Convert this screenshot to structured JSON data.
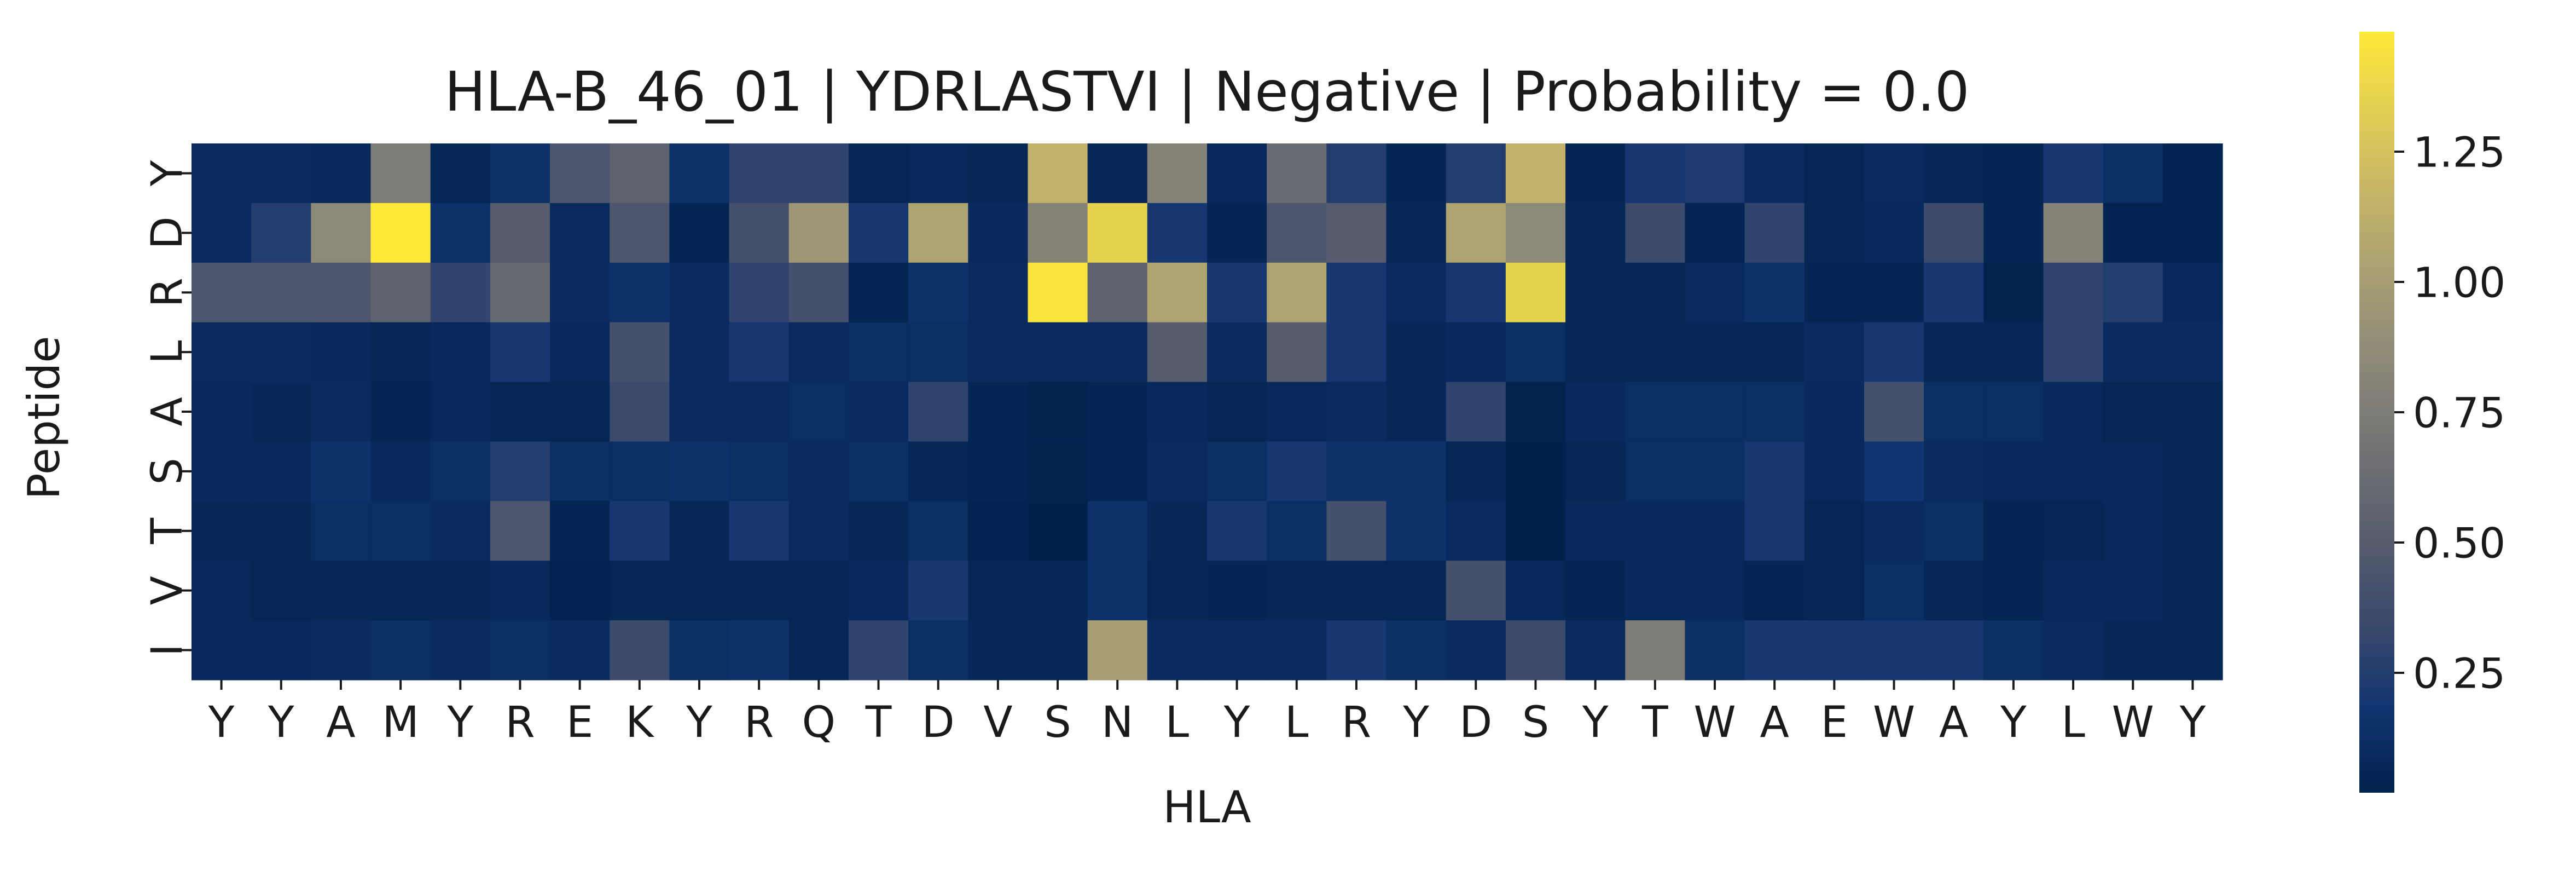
{
  "chart_data": {
    "type": "heatmap",
    "title": "HLA-B_46_01 | YDRLASTVI | Negative | Probability = 0.0",
    "xlabel": "HLA",
    "ylabel": "Peptide",
    "x_categories": [
      "Y",
      "Y",
      "A",
      "M",
      "Y",
      "R",
      "E",
      "K",
      "Y",
      "R",
      "Q",
      "T",
      "D",
      "V",
      "S",
      "N",
      "L",
      "Y",
      "L",
      "R",
      "Y",
      "D",
      "S",
      "Y",
      "T",
      "W",
      "A",
      "E",
      "W",
      "A",
      "Y",
      "L",
      "W",
      "Y"
    ],
    "y_categories": [
      "Y",
      "D",
      "R",
      "L",
      "A",
      "S",
      "T",
      "V",
      "I"
    ],
    "values": [
      [
        0.1,
        0.1,
        0.08,
        0.75,
        0.07,
        0.15,
        0.45,
        0.55,
        0.15,
        0.3,
        0.3,
        0.06,
        0.08,
        0.07,
        1.15,
        0.06,
        0.8,
        0.08,
        0.62,
        0.25,
        0.05,
        0.25,
        1.15,
        0.05,
        0.2,
        0.22,
        0.1,
        0.06,
        0.1,
        0.07,
        0.05,
        0.2,
        0.12,
        0.04
      ],
      [
        0.1,
        0.25,
        0.85,
        1.48,
        0.15,
        0.5,
        0.1,
        0.45,
        0.05,
        0.4,
        0.95,
        0.2,
        1.05,
        0.08,
        0.8,
        1.35,
        0.2,
        0.05,
        0.45,
        0.5,
        0.06,
        1.05,
        0.85,
        0.06,
        0.35,
        0.05,
        0.3,
        0.06,
        0.08,
        0.35,
        0.05,
        0.8,
        0.04,
        0.04
      ],
      [
        0.45,
        0.45,
        0.45,
        0.55,
        0.3,
        0.6,
        0.1,
        0.15,
        0.1,
        0.3,
        0.4,
        0.05,
        0.15,
        0.1,
        1.45,
        0.55,
        1.05,
        0.2,
        1.05,
        0.2,
        0.1,
        0.2,
        1.35,
        0.06,
        0.06,
        0.1,
        0.15,
        0.05,
        0.05,
        0.2,
        0.03,
        0.3,
        0.25,
        0.08
      ],
      [
        0.1,
        0.1,
        0.08,
        0.06,
        0.08,
        0.2,
        0.08,
        0.4,
        0.1,
        0.2,
        0.1,
        0.12,
        0.12,
        0.1,
        0.1,
        0.1,
        0.5,
        0.1,
        0.5,
        0.2,
        0.07,
        0.08,
        0.12,
        0.06,
        0.06,
        0.06,
        0.06,
        0.1,
        0.2,
        0.07,
        0.07,
        0.3,
        0.1,
        0.1
      ],
      [
        0.08,
        0.07,
        0.1,
        0.05,
        0.08,
        0.06,
        0.06,
        0.35,
        0.1,
        0.1,
        0.12,
        0.1,
        0.3,
        0.05,
        0.03,
        0.05,
        0.08,
        0.06,
        0.08,
        0.1,
        0.07,
        0.3,
        0.03,
        0.08,
        0.12,
        0.12,
        0.12,
        0.08,
        0.4,
        0.12,
        0.12,
        0.08,
        0.06,
        0.06
      ],
      [
        0.08,
        0.08,
        0.15,
        0.08,
        0.12,
        0.25,
        0.12,
        0.12,
        0.15,
        0.12,
        0.1,
        0.12,
        0.07,
        0.05,
        0.03,
        0.05,
        0.1,
        0.12,
        0.2,
        0.15,
        0.15,
        0.06,
        0.02,
        0.06,
        0.12,
        0.12,
        0.2,
        0.08,
        0.18,
        0.1,
        0.08,
        0.08,
        0.08,
        0.06
      ],
      [
        0.07,
        0.07,
        0.12,
        0.12,
        0.1,
        0.45,
        0.05,
        0.2,
        0.07,
        0.2,
        0.1,
        0.07,
        0.12,
        0.04,
        0.02,
        0.15,
        0.07,
        0.2,
        0.12,
        0.4,
        0.15,
        0.1,
        0.02,
        0.08,
        0.08,
        0.08,
        0.2,
        0.06,
        0.1,
        0.12,
        0.05,
        0.06,
        0.08,
        0.07
      ],
      [
        0.08,
        0.06,
        0.06,
        0.06,
        0.06,
        0.08,
        0.04,
        0.06,
        0.07,
        0.06,
        0.06,
        0.08,
        0.2,
        0.06,
        0.07,
        0.15,
        0.06,
        0.05,
        0.07,
        0.07,
        0.06,
        0.4,
        0.08,
        0.05,
        0.08,
        0.08,
        0.05,
        0.06,
        0.12,
        0.07,
        0.05,
        0.08,
        0.08,
        0.06
      ],
      [
        0.08,
        0.08,
        0.1,
        0.12,
        0.1,
        0.12,
        0.1,
        0.35,
        0.12,
        0.15,
        0.06,
        0.3,
        0.12,
        0.07,
        0.07,
        1.0,
        0.1,
        0.1,
        0.1,
        0.2,
        0.12,
        0.1,
        0.35,
        0.1,
        0.75,
        0.12,
        0.2,
        0.2,
        0.2,
        0.2,
        0.12,
        0.1,
        0.07,
        0.07
      ]
    ],
    "colormap": "cividis",
    "colormap_stops": [
      "#00224e",
      "#123570",
      "#3b496c",
      "#575d6d",
      "#707173",
      "#8a8678",
      "#a59c74",
      "#c3b369",
      "#e1cc55",
      "#fee838"
    ],
    "vmin": 0.02,
    "vmax": 1.48,
    "colorbar_ticks": [
      0.25,
      0.5,
      0.75,
      1.0,
      1.25
    ],
    "colorbar_tick_labels": [
      "0.25",
      "0.50",
      "0.75",
      "1.00",
      "1.25"
    ],
    "grid": false,
    "legend": "colorbar-right"
  }
}
